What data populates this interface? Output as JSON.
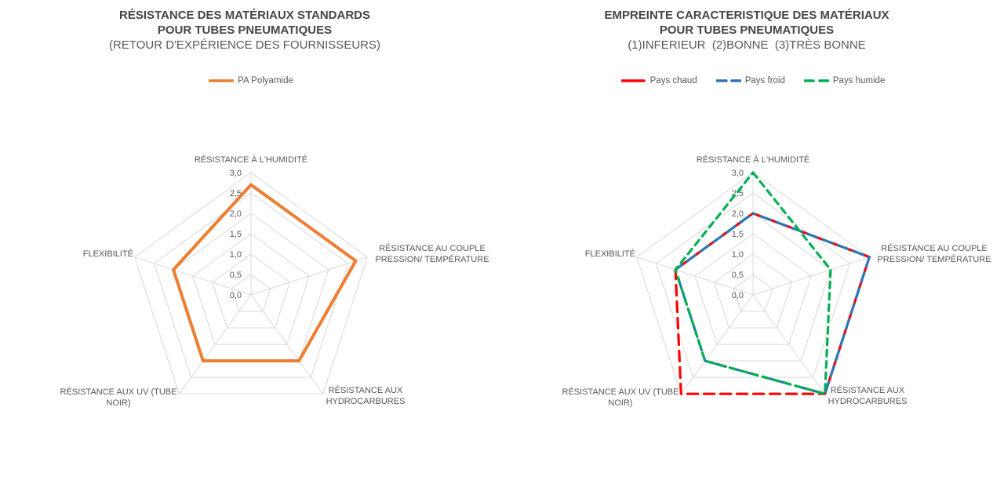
{
  "style": {
    "background": "#FFFFFF",
    "title_color": "#464646",
    "subtitle_color": "#595959",
    "label_color": "#595959",
    "grid_color": "#D9D9D9"
  },
  "chart_data": [
    {
      "type": "radar",
      "title_lines": [
        "RÉSISTANCE DES MATÉRIAUX STANDARDS",
        "POUR TUBES PNEUMATIQUES"
      ],
      "subtitle": "(RETOUR D'EXPÉRIENCE DES FOURNISSEURS)",
      "axes": [
        {
          "name": "RÉSISTANCE À L'HUMIDITÉ",
          "lines": [
            "RÉSISTANCE À L'HUMIDITÉ"
          ]
        },
        {
          "name": "RÉSISTANCE AU COUPLE PRESSION/ TEMPÉRATURE",
          "lines": [
            "RÉSISTANCE AU COUPLE",
            "PRESSION/ TEMPÉRATURE"
          ]
        },
        {
          "name": "RÉSISTANCE AUX HYDROCARBURES",
          "lines": [
            "RÉSISTANCE AUX",
            "HYDROCARBURES"
          ]
        },
        {
          "name": "RÉSISTANCE AUX UV (TUBE NOIR)",
          "lines": [
            "RÉSISTANCE AUX UV (TUBE",
            "NOIR)"
          ]
        },
        {
          "name": "FLEXIBILITÉ",
          "lines": [
            "FLEXIBILITÉ"
          ]
        }
      ],
      "tick_labels": [
        "3,0",
        "2,5",
        "2,0",
        "1,5",
        "1,0",
        "0,5",
        "0,0"
      ],
      "value_range": [
        0,
        3
      ],
      "tick_step": 0.5,
      "grid": true,
      "legend_position": "top",
      "series": [
        {
          "name": "PA Polyamide",
          "color": "#ED7D31",
          "line_style": "solid",
          "dash": null,
          "legend_dash": null,
          "values": [
            2.7,
            2.7,
            2.0,
            2.0,
            2.0
          ]
        }
      ]
    },
    {
      "type": "radar",
      "title_lines": [
        "EMPREINTE CARACTERISTIQUE DES MATÉRIAUX",
        "POUR TUBES PNEUMATIQUES"
      ],
      "subtitle": "(1)INFERIEUR  (2)BONNE  (3)TRÈS BONNE",
      "axes": [
        {
          "name": "RÉSISTANCE À L'HUMIDITÉ",
          "lines": [
            "RÉSISTANCE À L'HUMIDITÉ"
          ]
        },
        {
          "name": "RÉSISTANCE AU COUPLE PRESSION/ TEMPÉRATURE",
          "lines": [
            "RÉSISTANCE AU COUPLE",
            "PRESSION/ TEMPÉRATURE"
          ]
        },
        {
          "name": "RÉSISTANCE AUX HYDROCARBURES",
          "lines": [
            "RÉSISTANCE AUX",
            "HYDROCARBURES"
          ]
        },
        {
          "name": "RÉSISTANCE AUX UV (TUBE NOIR)",
          "lines": [
            "RÉSISTANCE AUX UV (TUBE",
            "NOIR)"
          ]
        },
        {
          "name": "FLEXIBILITÉ",
          "lines": [
            "FLEXIBILITÉ"
          ]
        }
      ],
      "tick_labels": [
        "3,0",
        "2,5",
        "2,0",
        "1,5",
        "1,0",
        "0,5",
        "0,0"
      ],
      "value_range": [
        0,
        3
      ],
      "tick_step": 0.5,
      "grid": true,
      "legend_position": "top",
      "series": [
        {
          "name": "Pays chaud",
          "color": "#FF0000",
          "line_style": "dashed",
          "dash": "13 8",
          "legend_dash": "28",
          "values": [
            2.0,
            3.0,
            3.0,
            3.0,
            2.0
          ]
        },
        {
          "name": "Pays froid",
          "color": "#2E75B6",
          "line_style": "dashed",
          "dash": "13 8",
          "legend_dash": "12 7",
          "values": [
            2.0,
            3.0,
            3.0,
            2.0,
            2.0
          ]
        },
        {
          "name": "Pays humide",
          "color": "#00B050",
          "line_style": "dashed",
          "dash": "8 6.5",
          "legend_dash": "11 8",
          "values": [
            3.0,
            2.0,
            3.0,
            2.0,
            2.0
          ]
        }
      ]
    }
  ]
}
